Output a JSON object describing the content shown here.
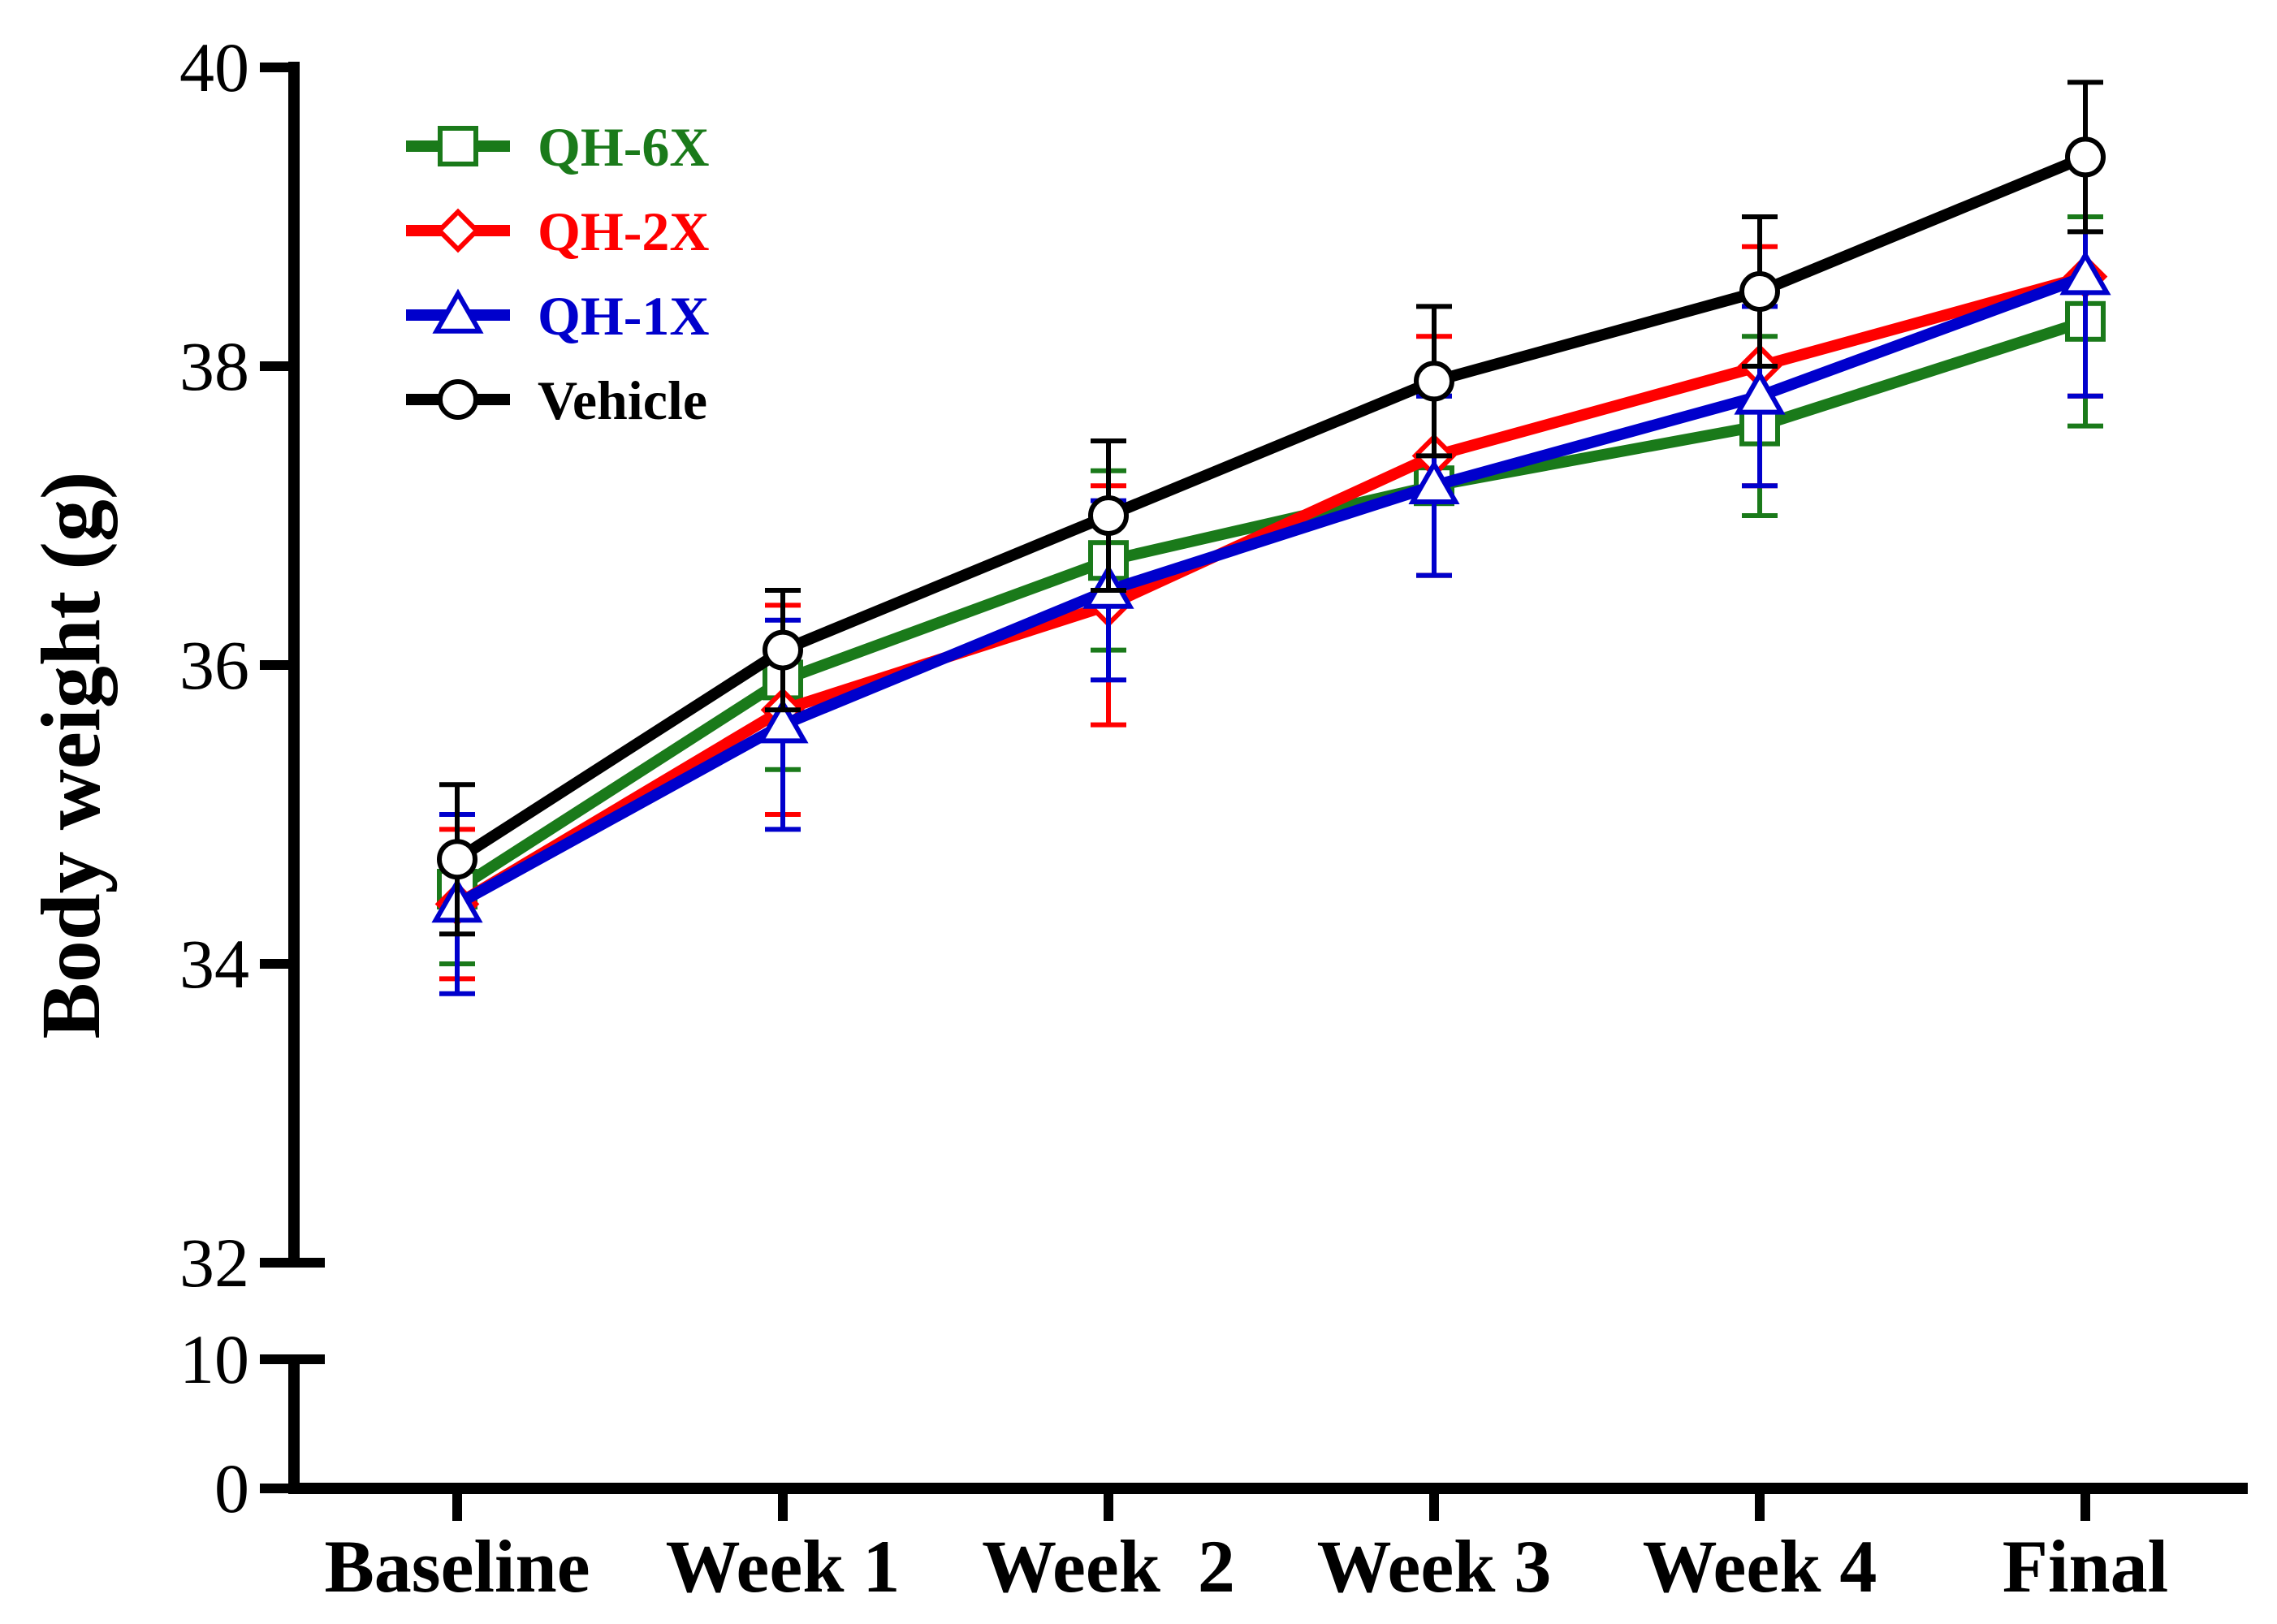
{
  "chart_data": {
    "type": "line",
    "title": "",
    "xlabel": "",
    "ylabel": "Body weight (g)",
    "categories": [
      "Baseline",
      "Week 1",
      "Week  2",
      "Week 3",
      "Week 4",
      "Final"
    ],
    "axis_break": {
      "lower_segment": {
        "range": [
          0,
          10
        ],
        "ticks": [
          "0",
          "10"
        ]
      },
      "upper_segment": {
        "range": [
          32,
          40
        ],
        "ticks": [
          "32",
          "34",
          "36",
          "38",
          "40"
        ]
      }
    },
    "ylim": [
      32,
      40
    ],
    "grid": false,
    "legend_position": "top-left",
    "series": [
      {
        "name": "QH-6X",
        "color": "#1a7a1a",
        "marker": "square",
        "values": [
          34.5,
          35.9,
          36.7,
          37.2,
          37.6,
          38.3
        ],
        "errors": [
          0.5,
          0.6,
          0.6,
          0.6,
          0.6,
          0.7
        ]
      },
      {
        "name": "QH-2X",
        "color": "#ff0000",
        "marker": "diamond",
        "values": [
          34.4,
          35.7,
          36.4,
          37.4,
          38.0,
          38.6
        ],
        "errors": [
          0.5,
          0.7,
          0.8,
          0.8,
          0.8,
          0.8
        ]
      },
      {
        "name": "QH-1X",
        "color": "#0000cc",
        "marker": "triangle",
        "values": [
          34.4,
          35.6,
          36.5,
          37.2,
          37.8,
          38.6
        ],
        "errors": [
          0.6,
          0.7,
          0.6,
          0.6,
          0.6,
          0.8
        ]
      },
      {
        "name": "Vehicle",
        "color": "#000000",
        "marker": "circle",
        "values": [
          34.7,
          36.1,
          37.0,
          37.9,
          38.5,
          39.4
        ],
        "errors": [
          0.5,
          0.4,
          0.5,
          0.5,
          0.5,
          0.5
        ]
      }
    ]
  }
}
